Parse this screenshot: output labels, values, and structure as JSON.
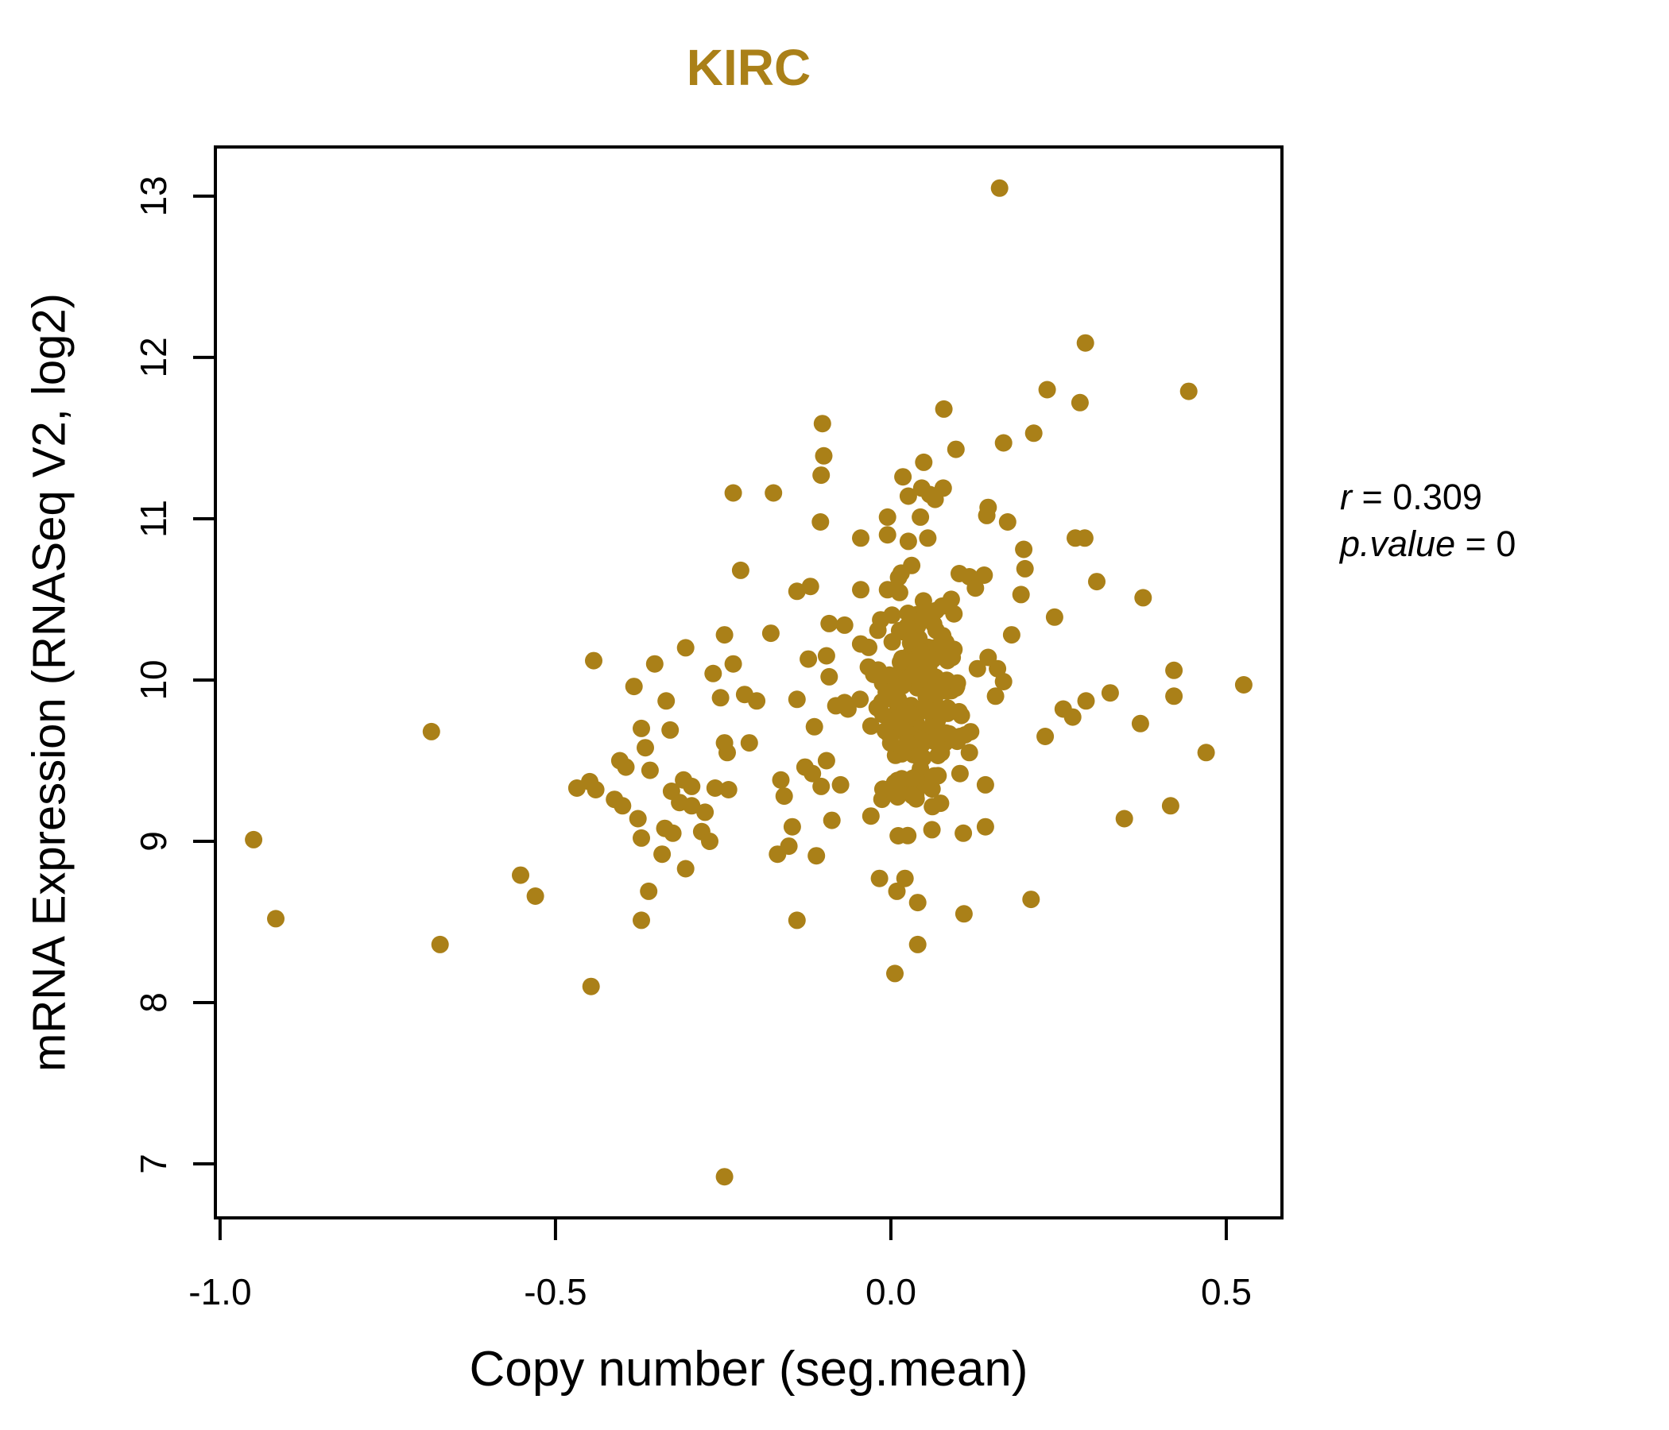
{
  "title": {
    "text": "KIRC",
    "color": "#AA8018"
  },
  "axis": {
    "x_label": "Copy number (seg.mean)",
    "y_label": "mRNA Expression (RNASeq V2, log2)"
  },
  "annotation": {
    "line1_var": "r",
    "line1_rest": " = 0.309",
    "line2_var": "p.value",
    "line2_rest": " = 0"
  },
  "chart_data": {
    "type": "scatter",
    "title": "KIRC",
    "xlabel": "Copy number (seg.mean)",
    "ylabel": "mRNA Expression (RNASeq V2, log2)",
    "xlim": [
      -1.007,
      0.583
    ],
    "ylim": [
      6.665,
      13.305
    ],
    "x_ticks": [
      -1.0,
      -0.5,
      0.0,
      0.5
    ],
    "x_tick_labels": [
      "-1.0",
      "-0.5",
      "0.0",
      "0.5"
    ],
    "y_ticks": [
      7,
      8,
      9,
      10,
      11,
      12,
      13
    ],
    "y_tick_labels": [
      "7",
      "8",
      "9",
      "10",
      "11",
      "12",
      "13"
    ],
    "grid": false,
    "legend": null,
    "correlation_r": 0.309,
    "p_value": 0,
    "point_color": "#AA8018",
    "point_radius": 11,
    "points": [
      [
        -0.102,
        11.59
      ],
      [
        -0.1,
        11.39
      ],
      [
        -0.104,
        11.27
      ],
      [
        -0.235,
        11.16
      ],
      [
        -0.175,
        11.16
      ],
      [
        0.049,
        11.35
      ],
      [
        0.018,
        11.26
      ],
      [
        0.046,
        11.19
      ],
      [
        0.026,
        11.14
      ],
      [
        0.079,
        11.68
      ],
      [
        0.078,
        11.19
      ],
      [
        -0.005,
        11.01
      ],
      [
        0.044,
        11.01
      ],
      [
        0.058,
        11.15
      ],
      [
        0.066,
        11.12
      ],
      [
        0.162,
        13.05
      ],
      [
        0.29,
        12.09
      ],
      [
        0.233,
        11.8
      ],
      [
        0.282,
        11.72
      ],
      [
        0.444,
        11.79
      ],
      [
        0.213,
        11.53
      ],
      [
        0.168,
        11.47
      ],
      [
        0.097,
        11.43
      ],
      [
        0.145,
        11.07
      ],
      [
        -0.685,
        9.68
      ],
      [
        -0.468,
        9.33
      ],
      [
        -0.95,
        9.01
      ],
      [
        -0.552,
        8.79
      ],
      [
        -0.917,
        8.52
      ],
      [
        -0.672,
        8.36
      ],
      [
        -0.53,
        8.66
      ],
      [
        -0.361,
        8.69
      ],
      [
        -0.372,
        8.51
      ],
      [
        -0.14,
        8.51
      ],
      [
        -0.447,
        8.1
      ],
      [
        -0.248,
        6.92
      ],
      [
        0.009,
        8.69
      ],
      [
        0.04,
        8.62
      ],
      [
        0.04,
        8.36
      ],
      [
        0.006,
        8.18
      ],
      [
        -0.017,
        8.77
      ],
      [
        0.021,
        8.77
      ],
      [
        0.109,
        8.55
      ],
      [
        0.209,
        8.64
      ],
      [
        -0.105,
        10.98
      ],
      [
        -0.045,
        10.88
      ],
      [
        -0.005,
        10.9
      ],
      [
        0.026,
        10.86
      ],
      [
        0.055,
        10.88
      ],
      [
        -0.224,
        10.68
      ],
      [
        -0.14,
        10.55
      ],
      [
        -0.12,
        10.58
      ],
      [
        -0.045,
        10.56
      ],
      [
        -0.005,
        10.56
      ],
      [
        0.031,
        10.71
      ],
      [
        -0.092,
        10.35
      ],
      [
        -0.069,
        10.34
      ],
      [
        -0.179,
        10.29
      ],
      [
        -0.248,
        10.28
      ],
      [
        -0.443,
        10.12
      ],
      [
        -0.352,
        10.1
      ],
      [
        -0.306,
        10.2
      ],
      [
        -0.265,
        10.04
      ],
      [
        -0.235,
        10.1
      ],
      [
        -0.123,
        10.13
      ],
      [
        -0.096,
        10.15
      ],
      [
        -0.092,
        10.02
      ],
      [
        -0.383,
        9.96
      ],
      [
        -0.335,
        9.87
      ],
      [
        -0.254,
        9.89
      ],
      [
        -0.218,
        9.91
      ],
      [
        -0.2,
        9.87
      ],
      [
        -0.14,
        9.88
      ],
      [
        -0.069,
        9.86
      ],
      [
        -0.046,
        9.88
      ],
      [
        -0.372,
        9.7
      ],
      [
        -0.329,
        9.69
      ],
      [
        -0.248,
        9.61
      ],
      [
        -0.244,
        9.55
      ],
      [
        -0.211,
        9.61
      ],
      [
        -0.114,
        9.71
      ],
      [
        -0.082,
        9.84
      ],
      [
        -0.064,
        9.82
      ],
      [
        -0.366,
        9.58
      ],
      [
        -0.404,
        9.5
      ],
      [
        -0.395,
        9.46
      ],
      [
        -0.359,
        9.44
      ],
      [
        -0.309,
        9.38
      ],
      [
        -0.297,
        9.34
      ],
      [
        -0.262,
        9.33
      ],
      [
        -0.242,
        9.32
      ],
      [
        -0.164,
        9.38
      ],
      [
        -0.159,
        9.28
      ],
      [
        -0.128,
        9.46
      ],
      [
        -0.117,
        9.42
      ],
      [
        -0.096,
        9.5
      ],
      [
        -0.104,
        9.34
      ],
      [
        -0.075,
        9.35
      ],
      [
        -0.449,
        9.37
      ],
      [
        -0.44,
        9.32
      ],
      [
        -0.412,
        9.26
      ],
      [
        -0.4,
        9.22
      ],
      [
        -0.327,
        9.31
      ],
      [
        -0.315,
        9.24
      ],
      [
        -0.297,
        9.22
      ],
      [
        -0.277,
        9.18
      ],
      [
        -0.377,
        9.14
      ],
      [
        -0.372,
        9.02
      ],
      [
        -0.337,
        9.08
      ],
      [
        -0.325,
        9.05
      ],
      [
        -0.282,
        9.06
      ],
      [
        -0.27,
        9.0
      ],
      [
        -0.341,
        8.92
      ],
      [
        -0.306,
        8.83
      ],
      [
        -0.169,
        8.92
      ],
      [
        -0.152,
        8.97
      ],
      [
        -0.111,
        8.91
      ],
      [
        -0.088,
        9.13
      ],
      [
        -0.147,
        9.09
      ],
      [
        0.143,
        11.02
      ],
      [
        0.174,
        10.98
      ],
      [
        0.275,
        10.88
      ],
      [
        0.289,
        10.88
      ],
      [
        0.198,
        10.81
      ],
      [
        0.2,
        10.69
      ],
      [
        0.102,
        10.66
      ],
      [
        0.117,
        10.64
      ],
      [
        0.139,
        10.65
      ],
      [
        0.126,
        10.57
      ],
      [
        0.307,
        10.61
      ],
      [
        0.194,
        10.53
      ],
      [
        0.376,
        10.51
      ],
      [
        0.09,
        10.5
      ],
      [
        0.094,
        10.41
      ],
      [
        0.244,
        10.39
      ],
      [
        0.18,
        10.28
      ],
      [
        0.094,
        10.19
      ],
      [
        0.145,
        10.14
      ],
      [
        0.129,
        10.07
      ],
      [
        0.159,
        10.07
      ],
      [
        0.168,
        9.99
      ],
      [
        0.097,
        9.95
      ],
      [
        0.156,
        9.9
      ],
      [
        0.422,
        10.06
      ],
      [
        0.526,
        9.97
      ],
      [
        0.422,
        9.9
      ],
      [
        0.327,
        9.92
      ],
      [
        0.291,
        9.87
      ],
      [
        0.257,
        9.82
      ],
      [
        0.271,
        9.77
      ],
      [
        0.105,
        9.78
      ],
      [
        0.372,
        9.73
      ],
      [
        0.23,
        9.65
      ],
      [
        0.103,
        9.65
      ],
      [
        0.117,
        9.55
      ],
      [
        0.47,
        9.55
      ],
      [
        0.141,
        9.35
      ],
      [
        0.103,
        9.42
      ],
      [
        0.417,
        9.22
      ],
      [
        0.348,
        9.14
      ],
      [
        0.141,
        9.09
      ],
      [
        0.108,
        9.05
      ]
    ],
    "dense_cluster": {
      "note": "heavily overplotted central blob near seg.mean 0; individual points unresolvable, reproduced as seeded gaussian cloud",
      "count": 175,
      "seed": 42,
      "x_center": 0.035,
      "x_sd": 0.034,
      "v_center": 9.86,
      "v_sd": 0.4,
      "x_min": -0.055,
      "x_max": 0.15,
      "v_min": 9.03,
      "v_max": 10.92
    }
  }
}
